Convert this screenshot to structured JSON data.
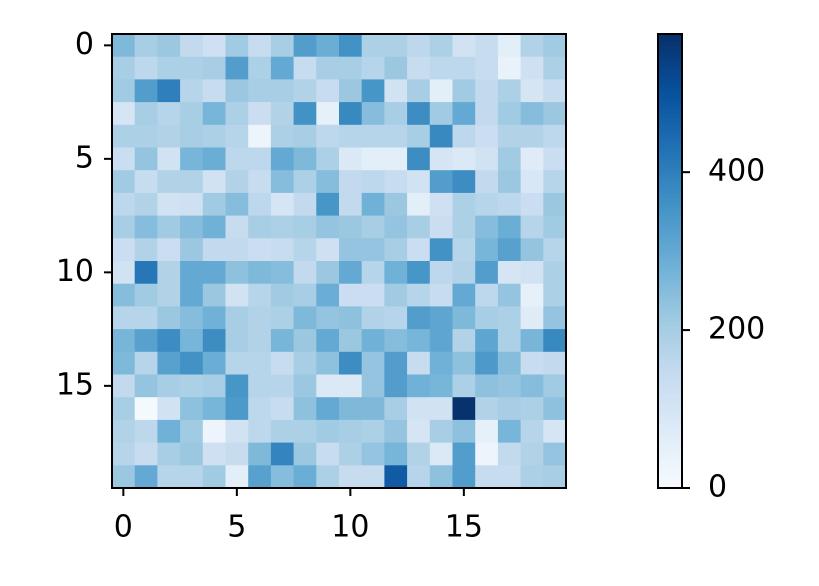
{
  "chart_data": {
    "type": "heatmap",
    "colormap": "Blues",
    "xlim": [
      -0.5,
      19.5
    ],
    "ylim": [
      19.5,
      -0.5
    ],
    "xticks": [
      0,
      5,
      10,
      15
    ],
    "yticks": [
      0,
      5,
      10,
      15
    ],
    "colorbar_lim": [
      0,
      575
    ],
    "colorbar_ticks": [
      0,
      200,
      400
    ],
    "values": [
      [
        260,
        200,
        220,
        150,
        120,
        210,
        140,
        200,
        330,
        290,
        360,
        190,
        190,
        160,
        190,
        110,
        140,
        60,
        180,
        210
      ],
      [
        200,
        160,
        190,
        190,
        200,
        330,
        190,
        300,
        140,
        200,
        200,
        170,
        220,
        140,
        160,
        160,
        140,
        40,
        120,
        190
      ],
      [
        210,
        330,
        400,
        170,
        140,
        220,
        200,
        200,
        180,
        140,
        220,
        350,
        110,
        200,
        60,
        210,
        150,
        190,
        100,
        140
      ],
      [
        100,
        200,
        170,
        200,
        270,
        190,
        130,
        180,
        360,
        50,
        380,
        250,
        200,
        370,
        210,
        300,
        150,
        210,
        250,
        220
      ],
      [
        190,
        190,
        180,
        200,
        190,
        170,
        30,
        190,
        200,
        160,
        170,
        170,
        170,
        200,
        380,
        160,
        130,
        180,
        180,
        160
      ],
      [
        130,
        230,
        110,
        270,
        290,
        160,
        160,
        300,
        260,
        190,
        80,
        60,
        60,
        370,
        100,
        80,
        110,
        210,
        70,
        130
      ],
      [
        210,
        140,
        180,
        180,
        110,
        180,
        140,
        250,
        190,
        250,
        150,
        160,
        140,
        110,
        330,
        370,
        150,
        220,
        90,
        170
      ],
      [
        160,
        180,
        110,
        120,
        210,
        250,
        160,
        100,
        150,
        350,
        150,
        280,
        220,
        60,
        120,
        190,
        170,
        160,
        130,
        220
      ],
      [
        200,
        250,
        210,
        250,
        280,
        140,
        200,
        190,
        200,
        230,
        220,
        200,
        230,
        200,
        130,
        190,
        250,
        290,
        170,
        210
      ],
      [
        130,
        180,
        130,
        220,
        150,
        150,
        130,
        140,
        170,
        120,
        230,
        230,
        200,
        130,
        360,
        170,
        270,
        320,
        230,
        170
      ],
      [
        110,
        420,
        180,
        300,
        300,
        240,
        260,
        250,
        150,
        220,
        300,
        170,
        280,
        350,
        160,
        180,
        330,
        100,
        110,
        190
      ],
      [
        250,
        210,
        180,
        300,
        220,
        110,
        170,
        210,
        200,
        290,
        130,
        130,
        210,
        170,
        140,
        300,
        160,
        230,
        50,
        190
      ],
      [
        170,
        170,
        220,
        250,
        280,
        200,
        180,
        190,
        260,
        230,
        240,
        180,
        170,
        330,
        310,
        260,
        200,
        190,
        70,
        230
      ],
      [
        270,
        320,
        370,
        270,
        370,
        200,
        180,
        270,
        220,
        300,
        220,
        280,
        250,
        270,
        310,
        180,
        310,
        190,
        270,
        380
      ],
      [
        260,
        170,
        320,
        360,
        290,
        170,
        170,
        140,
        200,
        240,
        370,
        230,
        330,
        140,
        280,
        240,
        340,
        250,
        140,
        150
      ],
      [
        150,
        230,
        200,
        190,
        200,
        350,
        170,
        170,
        220,
        80,
        80,
        230,
        330,
        280,
        270,
        190,
        240,
        230,
        250,
        210
      ],
      [
        200,
        10,
        110,
        240,
        270,
        340,
        160,
        140,
        240,
        300,
        260,
        260,
        200,
        110,
        110,
        570,
        180,
        200,
        190,
        240
      ],
      [
        180,
        160,
        280,
        210,
        30,
        110,
        160,
        190,
        190,
        210,
        200,
        190,
        230,
        100,
        200,
        240,
        50,
        270,
        170,
        100
      ],
      [
        170,
        140,
        200,
        220,
        120,
        140,
        260,
        390,
        220,
        140,
        190,
        230,
        270,
        180,
        80,
        330,
        30,
        150,
        180,
        230
      ],
      [
        220,
        300,
        170,
        170,
        210,
        60,
        320,
        250,
        290,
        190,
        140,
        140,
        480,
        170,
        240,
        330,
        140,
        140,
        190,
        200
      ]
    ]
  }
}
